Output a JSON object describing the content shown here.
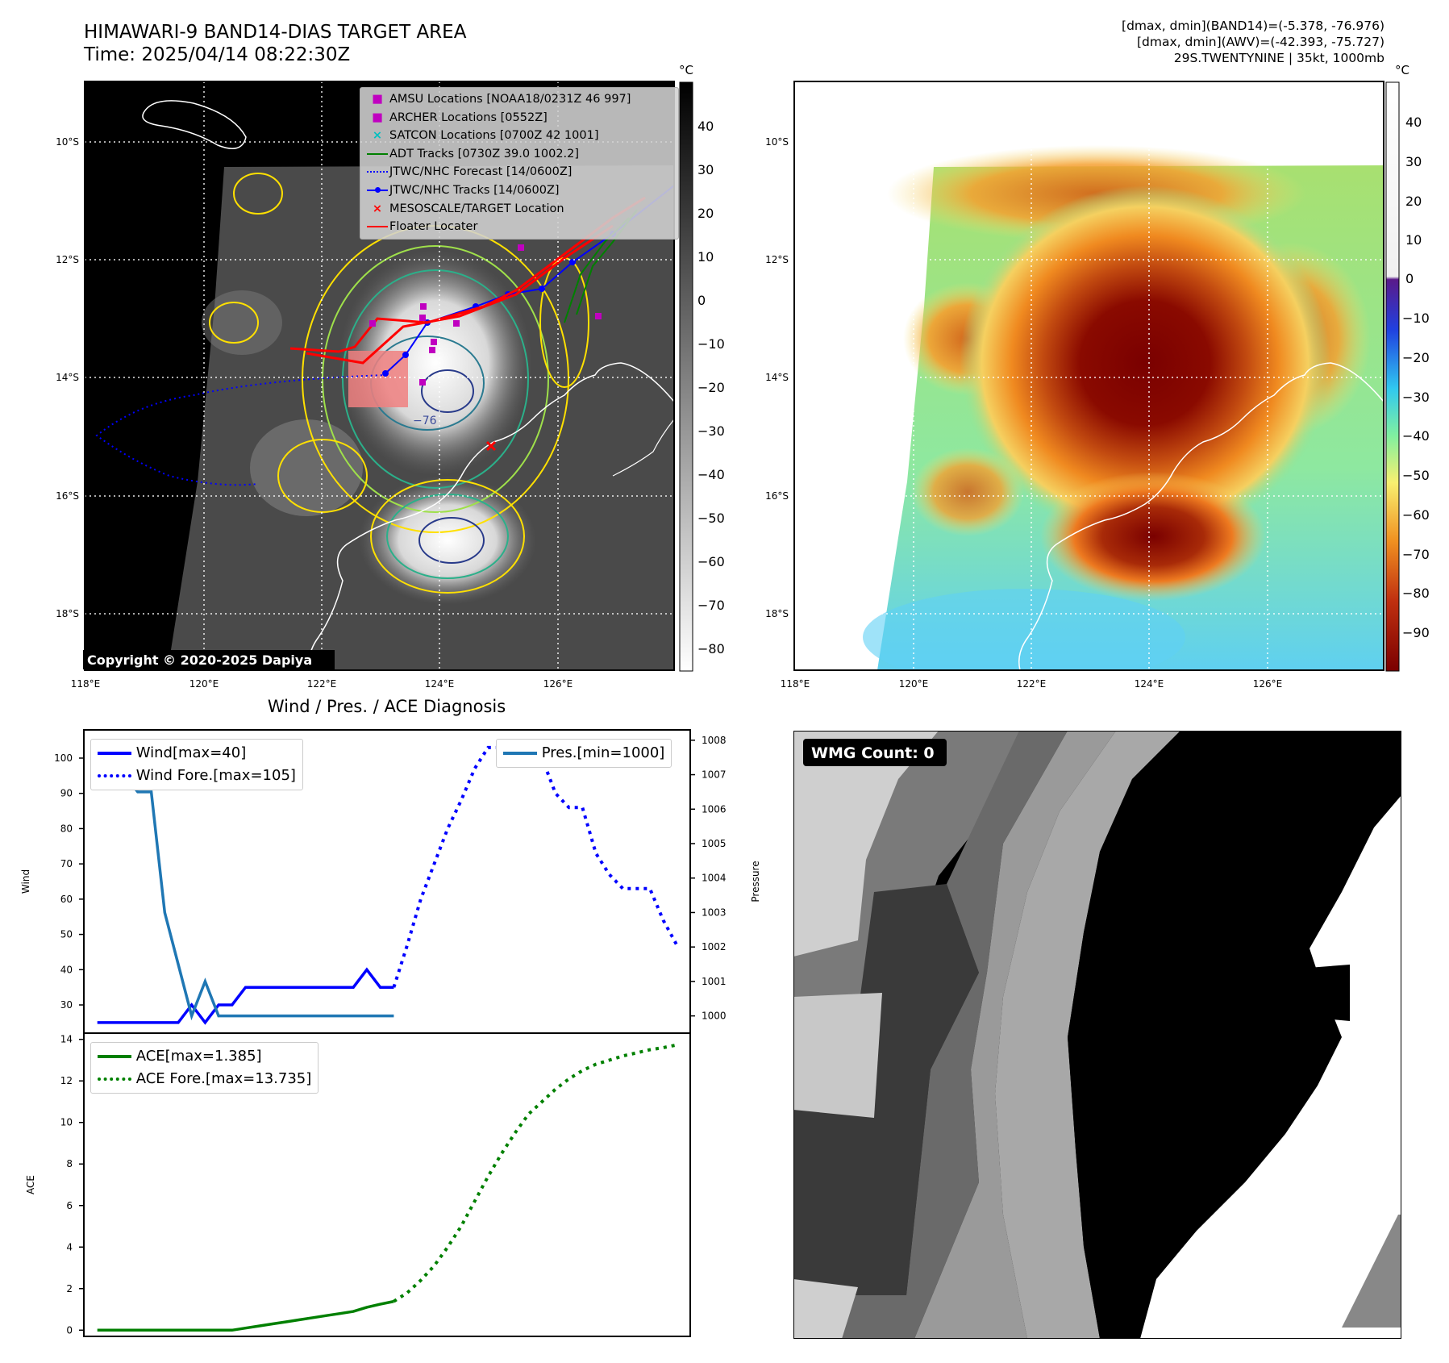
{
  "header": {
    "title_line1": "HIMAWARI-9 BAND14-DIAS TARGET AREA",
    "title_line2": "Time: 2025/04/14 08:22:30Z",
    "stats_line1": "[dmax, dmin](BAND14)=(-5.378, -76.976)",
    "stats_line2": "[dmax, dmin](AWV)=(-42.393, -75.727)",
    "stats_line3": "29S.TWENTYNINE | 35kt, 1000mb"
  },
  "map": {
    "lat_labels": [
      "10°S",
      "12°S",
      "14°S",
      "16°S",
      "18°S"
    ],
    "lon_labels": [
      "118°E",
      "120°E",
      "122°E",
      "124°E",
      "126°E"
    ],
    "copyright": "Copyright © 2020-2025 Dapiya",
    "contour_label": "−76",
    "legend": [
      {
        "label": "AMSU Locations [NOAA18/0231Z 46 997]",
        "color": "#c000c0",
        "marker": "square"
      },
      {
        "label": "ARCHER Locations [0552Z]",
        "color": "#c000c0",
        "marker": "square"
      },
      {
        "label": "SATCON Locations [0700Z 42 1001]",
        "color": "#00c0c0",
        "marker": "x"
      },
      {
        "label": "ADT Tracks [0730Z 39.0 1002.2]",
        "color": "#008000",
        "marker": "line"
      },
      {
        "label": "JTWC/NHC Forecast [14/0600Z]",
        "color": "#0000ff",
        "marker": "dotted"
      },
      {
        "label": "JTWC/NHC Tracks [14/0600Z]",
        "color": "#0000ff",
        "marker": "line-dot"
      },
      {
        "label": "MESOSCALE/TARGET Location",
        "color": "#ff0000",
        "marker": "x"
      },
      {
        "label": "Floater Locater",
        "color": "#ff0000",
        "marker": "line"
      }
    ]
  },
  "colorbar_gray": {
    "unit": "°C",
    "ticks": [
      "40",
      "30",
      "20",
      "10",
      "0",
      "−10",
      "−20",
      "−30",
      "−40",
      "−50",
      "−60",
      "−70",
      "−80"
    ]
  },
  "colorbar_color": {
    "unit": "°C",
    "ticks": [
      "40",
      "30",
      "20",
      "10",
      "0",
      "−10",
      "−20",
      "−30",
      "−40",
      "−50",
      "−60",
      "−70",
      "−80",
      "−90"
    ]
  },
  "wmg": {
    "label": "WMG Count: 0"
  },
  "chart_data": [
    {
      "type": "line",
      "title": "Wind / Pres. / ACE Diagnosis",
      "ylabel": "Wind",
      "ylabel_right": "Pressure",
      "ylim": [
        22,
        108
      ],
      "ylim_right": [
        999.5,
        1008.3
      ],
      "yticks": [
        30,
        40,
        50,
        60,
        70,
        80,
        90,
        100
      ],
      "yticks_right": [
        1000,
        1001,
        1002,
        1003,
        1004,
        1005,
        1006,
        1007,
        1008
      ],
      "series": [
        {
          "name": "Wind[max=40]",
          "color": "#0000ff",
          "style": "solid",
          "x": [
            0,
            1,
            2,
            3,
            4,
            5,
            6,
            7,
            8,
            9,
            10,
            11,
            12,
            13,
            14,
            15,
            16,
            17,
            18,
            19,
            20,
            21,
            22
          ],
          "values": [
            25,
            25,
            25,
            25,
            25,
            25,
            25,
            30,
            25,
            30,
            30,
            35,
            35,
            35,
            35,
            35,
            35,
            35,
            35,
            35,
            40,
            35,
            35
          ]
        },
        {
          "name": "Wind Fore.[max=105]",
          "color": "#0000ff",
          "style": "dotted",
          "x": [
            22,
            23,
            24,
            25,
            26,
            27,
            28,
            29,
            30,
            31,
            32,
            33,
            34,
            35,
            36,
            37,
            38,
            39,
            40,
            41,
            42,
            43
          ],
          "values": [
            35,
            47,
            60,
            70,
            80,
            88,
            97,
            103,
            103,
            103,
            103,
            100,
            90,
            86,
            86,
            73,
            67,
            63,
            63,
            63,
            54,
            47
          ]
        },
        {
          "name": "Pres.[min=1000]",
          "color": "#1f77b4",
          "style": "solid",
          "axis": "right",
          "x": [
            0,
            1,
            2,
            3,
            4,
            5,
            6,
            7,
            8,
            9,
            10,
            11,
            12,
            13,
            14,
            15,
            16,
            17,
            18,
            19,
            20,
            21,
            22
          ],
          "values": [
            1008,
            1007,
            1007,
            1006.5,
            1006.5,
            1003,
            1001.5,
            1000,
            1001,
            1000,
            1000,
            1000,
            1000,
            1000,
            1000,
            1000,
            1000,
            1000,
            1000,
            1000,
            1000,
            1000,
            1000
          ]
        }
      ]
    },
    {
      "type": "line",
      "ylabel": "ACE",
      "ylim": [
        -0.3,
        14.3
      ],
      "yticks": [
        0,
        2,
        4,
        6,
        8,
        10,
        12,
        14
      ],
      "series": [
        {
          "name": "ACE[max=1.385]",
          "color": "#008000",
          "style": "solid",
          "x": [
            0,
            1,
            2,
            3,
            4,
            5,
            6,
            7,
            8,
            9,
            10,
            11,
            12,
            13,
            14,
            15,
            16,
            17,
            18,
            19,
            20,
            21,
            22
          ],
          "values": [
            0,
            0,
            0,
            0,
            0,
            0,
            0,
            0,
            0,
            0,
            0,
            0.1,
            0.2,
            0.3,
            0.4,
            0.5,
            0.6,
            0.7,
            0.8,
            0.9,
            1.1,
            1.25,
            1.385
          ]
        },
        {
          "name": "ACE Fore.[max=13.735]",
          "color": "#008000",
          "style": "dotted",
          "x": [
            22,
            23,
            24,
            25,
            26,
            27,
            28,
            29,
            30,
            31,
            32,
            33,
            34,
            35,
            36,
            37,
            38,
            39,
            40,
            41,
            42,
            43
          ],
          "values": [
            1.385,
            1.8,
            2.4,
            3.1,
            4.0,
            5.0,
            6.2,
            7.4,
            8.5,
            9.5,
            10.4,
            11.0,
            11.6,
            12.1,
            12.5,
            12.8,
            13.0,
            13.2,
            13.35,
            13.5,
            13.6,
            13.735
          ]
        }
      ]
    }
  ]
}
